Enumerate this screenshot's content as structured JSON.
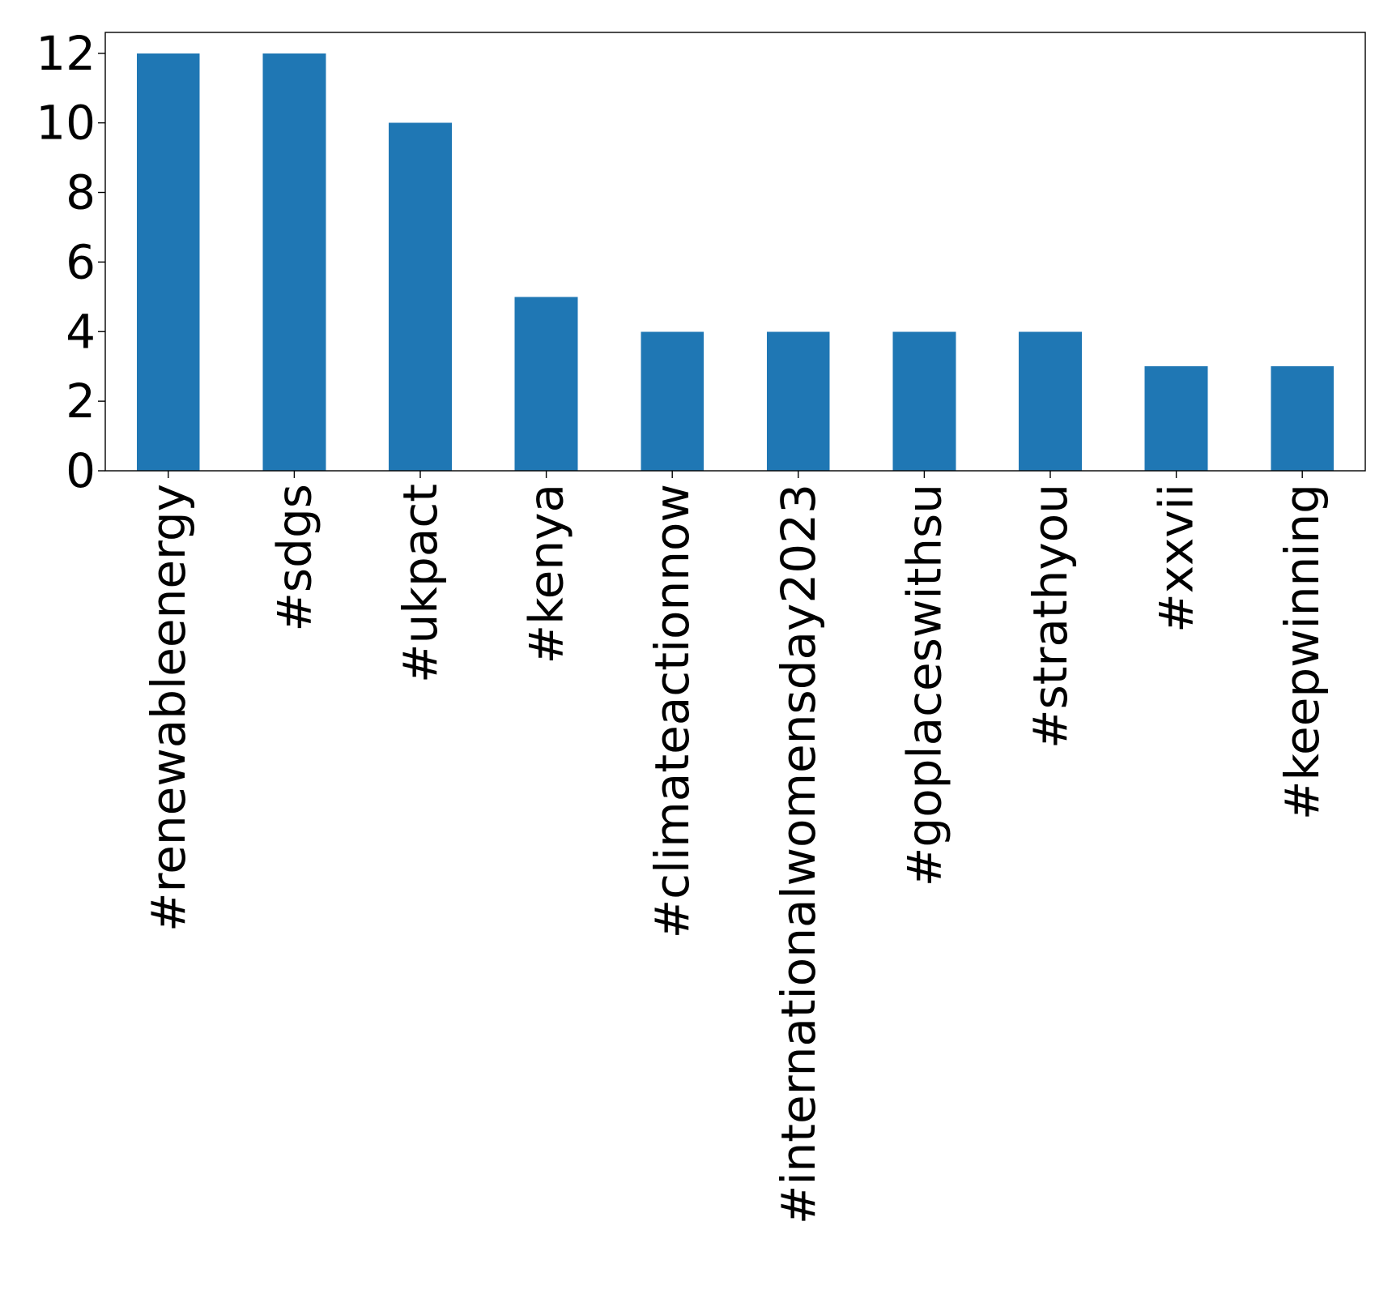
{
  "chart_data": {
    "type": "bar",
    "title": "",
    "xlabel": "",
    "ylabel": "",
    "categories": [
      "#renewableenergy",
      "#sdgs",
      "#ukpact",
      "#kenya",
      "#climateactionnow",
      "#internationalwomensday2023",
      "#goplaceswithsu",
      "#strathyou",
      "#xxvii",
      "#keepwinning"
    ],
    "values": [
      12,
      12,
      10,
      5,
      4,
      4,
      4,
      4,
      3,
      3
    ],
    "ylim": [
      0,
      12.6
    ],
    "yticks": [
      0,
      2,
      4,
      6,
      8,
      10,
      12
    ],
    "grid": false,
    "legend": "none",
    "bar_color": "#1f77b4"
  }
}
